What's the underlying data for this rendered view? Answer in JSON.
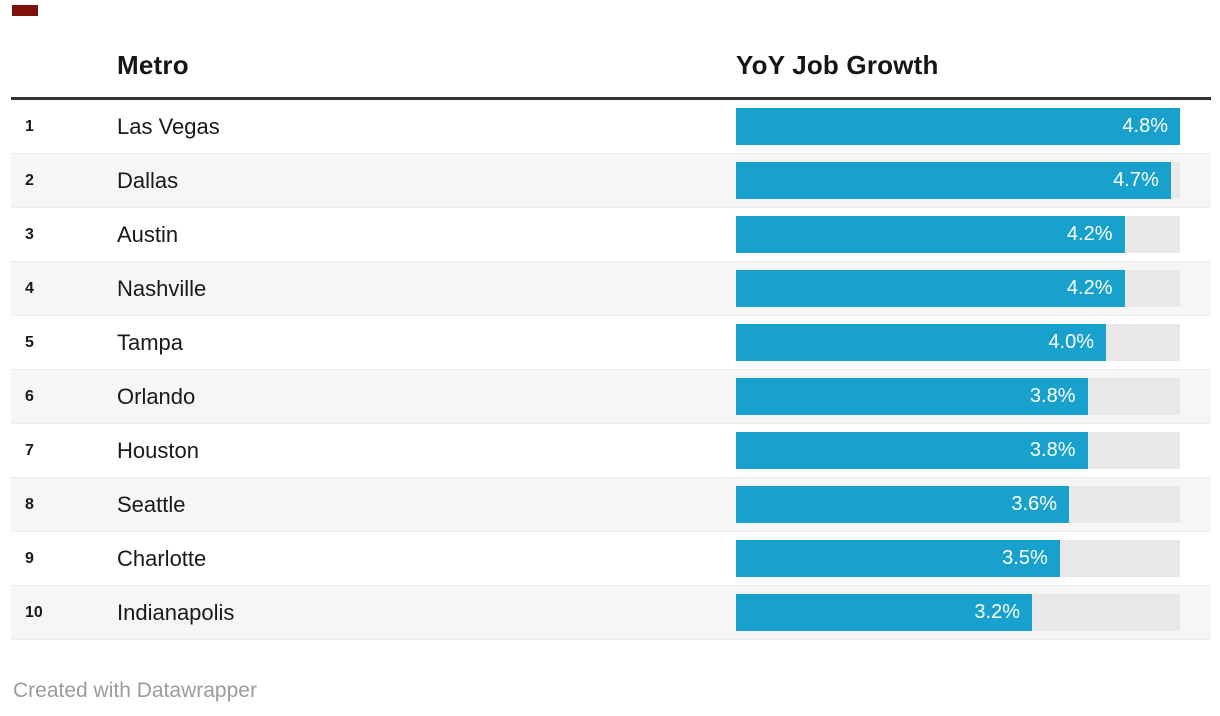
{
  "artifact": {
    "red_mark_color": "#7d120c"
  },
  "table_header": {
    "rank_label": "",
    "metro_label": "Metro",
    "growth_label": "YoY Job Growth"
  },
  "chart_data": {
    "type": "bar",
    "title": "",
    "columns": [
      "Metro",
      "YoY Job Growth"
    ],
    "ranks": [
      "1",
      "2",
      "3",
      "4",
      "5",
      "6",
      "7",
      "8",
      "9",
      "10"
    ],
    "categories": [
      "Las Vegas",
      "Dallas",
      "Austin",
      "Nashville",
      "Tampa",
      "Orlando",
      "Houston",
      "Seattle",
      "Charlotte",
      "Indianapolis"
    ],
    "values": [
      4.8,
      4.7,
      4.2,
      4.2,
      4.0,
      3.8,
      3.8,
      3.6,
      3.5,
      3.2
    ],
    "value_labels": [
      "4.8%",
      "4.7%",
      "4.2%",
      "4.2%",
      "4.0%",
      "3.8%",
      "3.8%",
      "3.6%",
      "3.5%",
      "3.2%"
    ],
    "xlim": [
      0,
      4.8
    ],
    "bar_color": "#18a1cc",
    "track_color": "#e8e8e8",
    "orientation": "horizontal",
    "grid": false,
    "legend": "none",
    "value_label_position": "inside-end"
  },
  "footer": {
    "credit": "Created with Datawrapper"
  }
}
